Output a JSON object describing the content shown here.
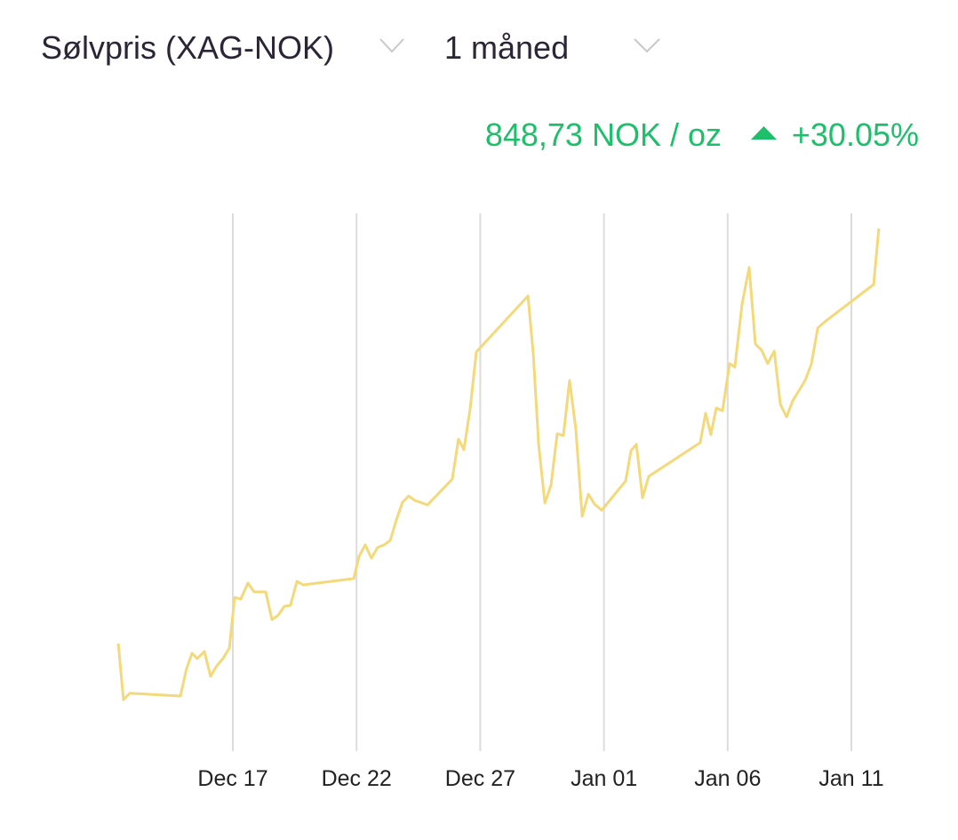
{
  "header": {
    "title": "Sølvpris (XAG-NOK)",
    "period": "1 måned",
    "price": "848,73 NOK / oz",
    "change": "+30.05%"
  },
  "chart_data": {
    "type": "line",
    "color": "#f3d97a",
    "grid": true,
    "x": [
      -4.63,
      -4.42,
      -4.17,
      -2.12,
      -1.87,
      -1.65,
      -1.44,
      -1.15,
      -0.9,
      -0.65,
      -0.4,
      -0.14,
      0.07,
      0.32,
      0.61,
      0.86,
      1.33,
      1.58,
      1.83,
      2.08,
      2.33,
      2.59,
      2.84,
      4.89,
      5.1,
      5.35,
      5.6,
      5.85,
      6.11,
      6.36,
      6.61,
      6.86,
      7.11,
      7.36,
      7.87,
      8.87,
      9.12,
      9.34,
      9.59,
      9.84,
      11.93,
      12.14,
      12.36,
      12.61,
      12.86,
      13.11,
      13.36,
      13.61,
      13.86,
      14.12,
      14.37,
      14.62,
      14.91,
      15.88,
      16.09,
      16.31,
      16.56,
      16.81,
      18.89,
      19.11,
      19.32,
      19.54,
      19.79,
      20.08,
      20.29,
      20.58,
      20.87,
      21.12,
      21.37,
      21.62,
      21.88,
      22.13,
      22.38,
      22.63,
      23.13,
      23.38,
      23.64,
      23.92,
      25.9,
      26.11
    ],
    "values": [
      652.6,
      626.1,
      629.1,
      627.8,
      640.8,
      648.0,
      645.5,
      648.8,
      637.1,
      642.1,
      645.5,
      650.5,
      674.4,
      673.6,
      681.2,
      677.0,
      677.0,
      663.9,
      666.0,
      670.2,
      670.7,
      682.0,
      680.3,
      683.3,
      693.8,
      699.2,
      692.9,
      698.0,
      699.2,
      701.3,
      711.0,
      719.4,
      722.3,
      720.2,
      718.1,
      730.3,
      749.2,
      744.2,
      763.5,
      790.4,
      816.8,
      789.9,
      746.7,
      719.0,
      727.4,
      751.7,
      750.9,
      776.9,
      754.2,
      712.7,
      723.2,
      718.5,
      715.6,
      729.5,
      743.7,
      746.7,
      721.5,
      731.6,
      747.5,
      761.4,
      751.3,
      763.9,
      762.6,
      784.9,
      783.2,
      813.0,
      830.3,
      794.1,
      791.2,
      784.9,
      790.8,
      765.6,
      759.7,
      767.3,
      776.9,
      784.5,
      801.7,
      804.6,
      822.3,
      848.73
    ],
    "xlim": [
      -5,
      27
    ],
    "xticks": [
      {
        "value": 0,
        "label": "Dec 17"
      },
      {
        "value": 5,
        "label": "Dec 22"
      },
      {
        "value": 10,
        "label": "Dec 27"
      },
      {
        "value": 15,
        "label": "Jan 01"
      },
      {
        "value": 20,
        "label": "Jan 06"
      },
      {
        "value": 25,
        "label": "Jan 11"
      }
    ],
    "ylim": [
      600,
      860
    ]
  }
}
